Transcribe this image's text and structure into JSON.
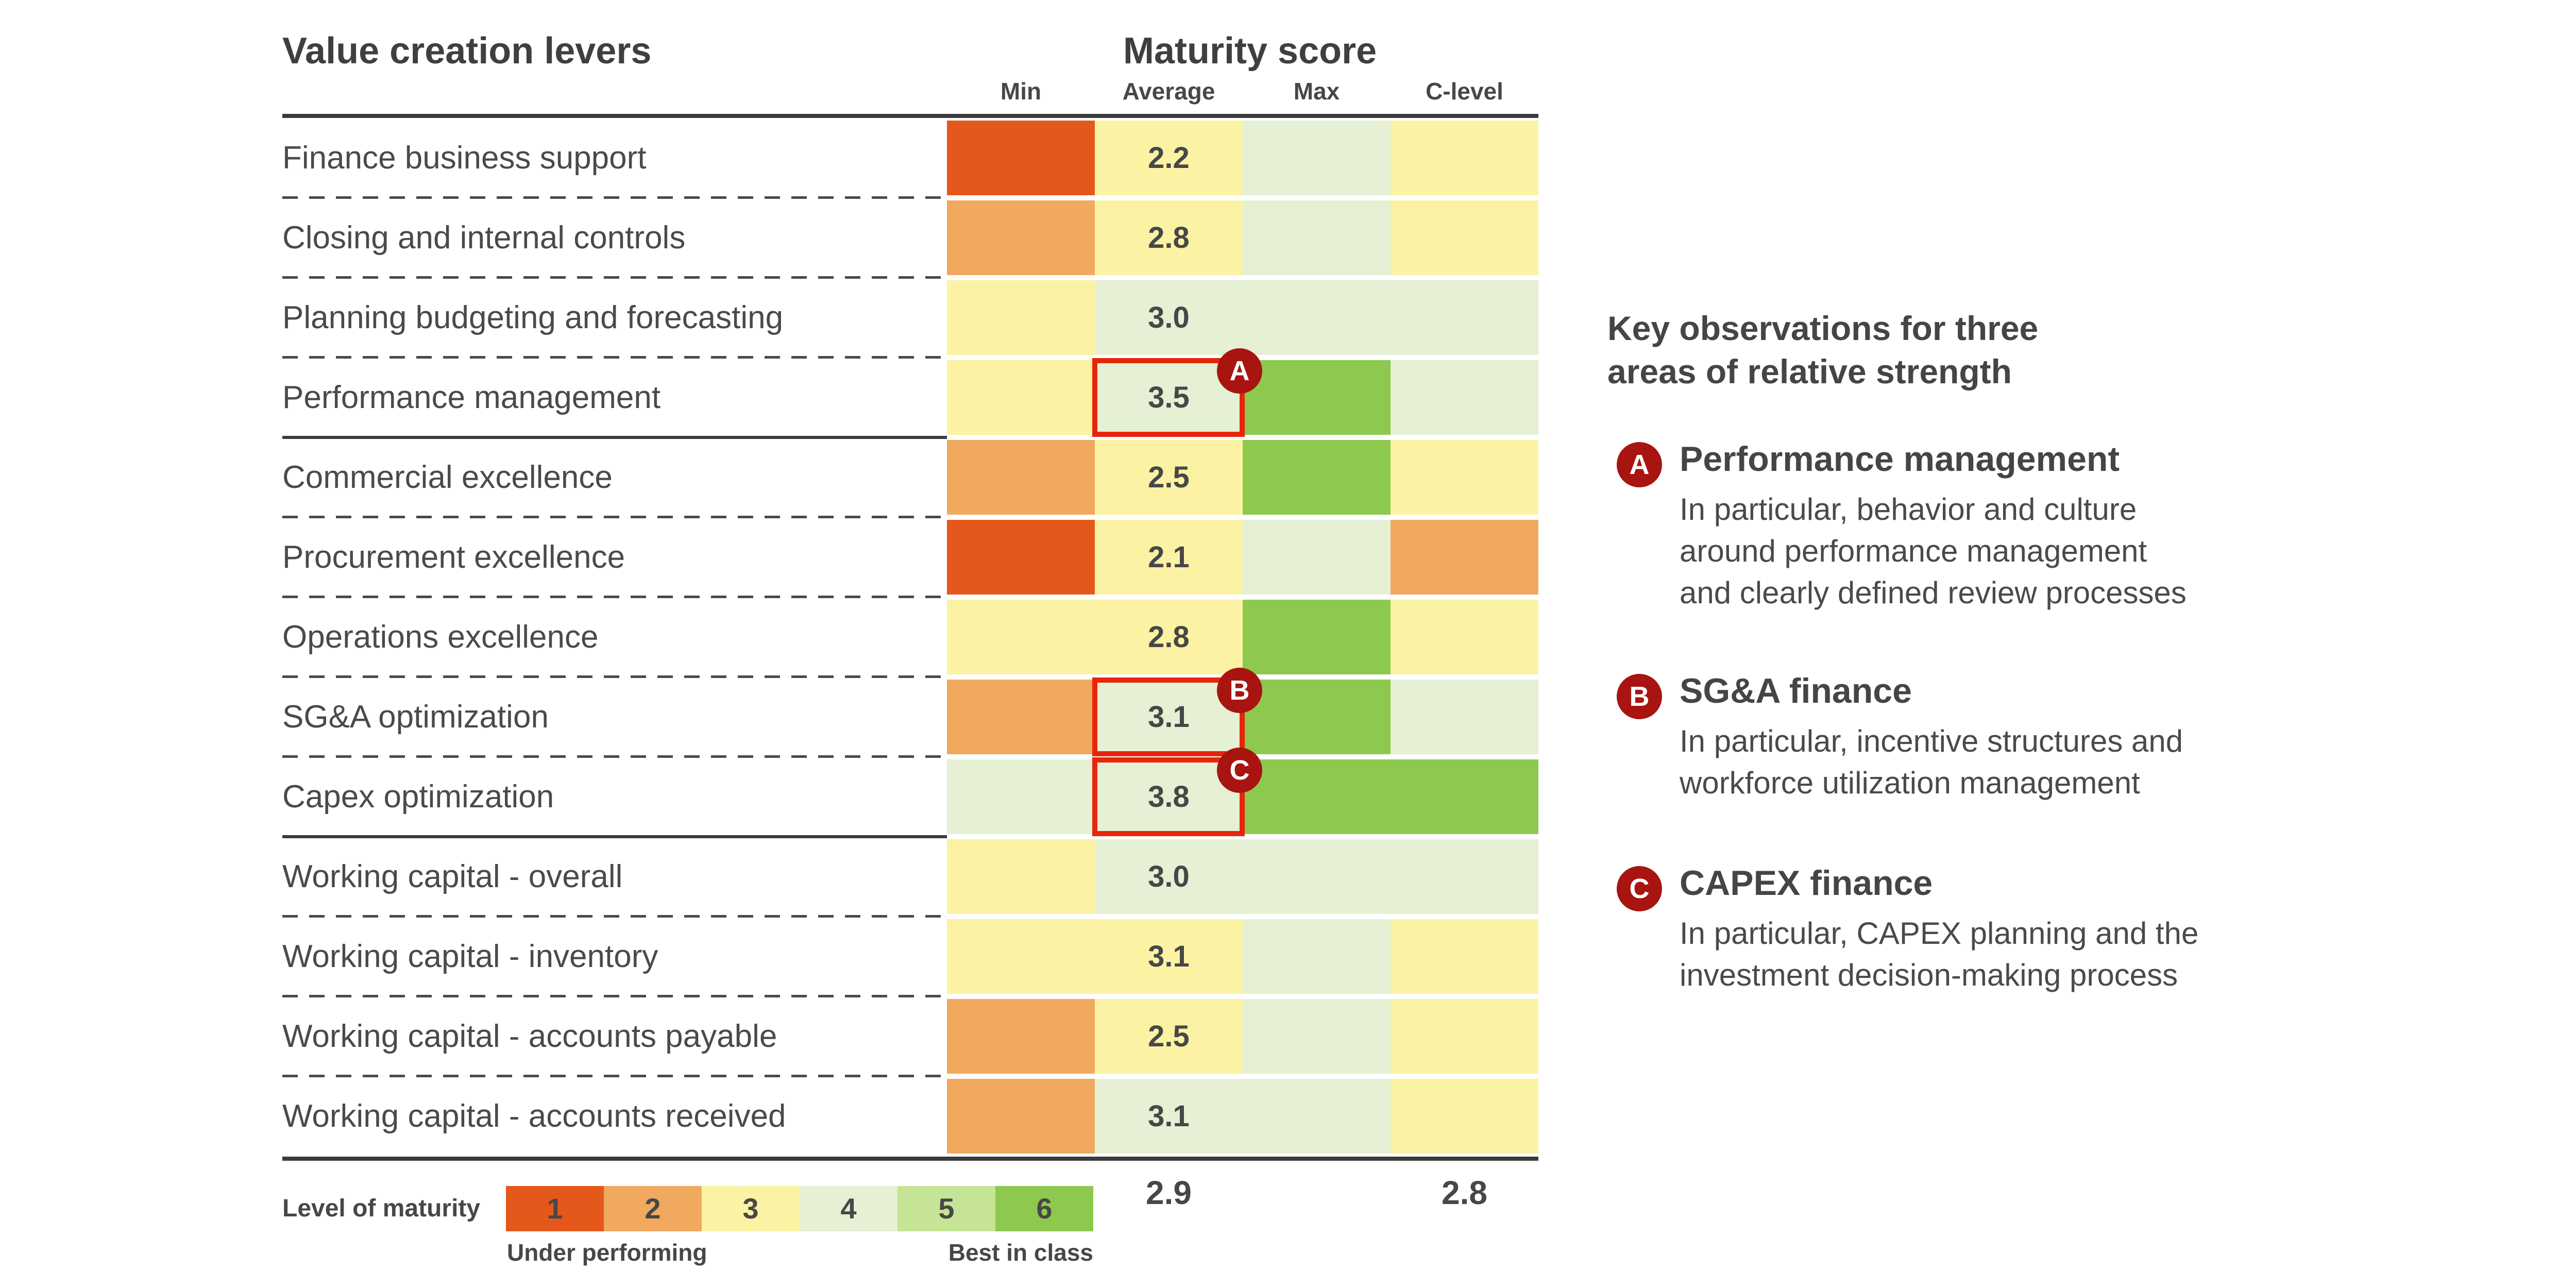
{
  "chart_data": {
    "type": "heatmap",
    "rows_header": "Value creation levers",
    "title": "Maturity score",
    "columns": [
      "Min",
      "Average",
      "Max",
      "C-level"
    ],
    "rows": [
      {
        "label": "Finance business support",
        "average_score": "2.2",
        "cell_levels": {
          "min": 1,
          "average": 3,
          "max": 4,
          "c_level": 3
        },
        "annotation": null,
        "separator_after": "dashed"
      },
      {
        "label": "Closing and internal controls",
        "average_score": "2.8",
        "cell_levels": {
          "min": 2,
          "average": 3,
          "max": 4,
          "c_level": 3
        },
        "annotation": null,
        "separator_after": "dashed"
      },
      {
        "label": "Planning budgeting and forecasting",
        "average_score": "3.0",
        "cell_levels": {
          "min": 3,
          "average": 4,
          "max": 4,
          "c_level": 4
        },
        "annotation": null,
        "separator_after": "dashed"
      },
      {
        "label": "Performance management",
        "average_score": "3.5",
        "cell_levels": {
          "min": 3,
          "average": 4,
          "max": 6,
          "c_level": 4
        },
        "annotation": "A",
        "separator_after": "solid"
      },
      {
        "label": "Commercial excellence",
        "average_score": "2.5",
        "cell_levels": {
          "min": 2,
          "average": 3,
          "max": 6,
          "c_level": 3
        },
        "annotation": null,
        "separator_after": "dashed"
      },
      {
        "label": "Procurement excellence",
        "average_score": "2.1",
        "cell_levels": {
          "min": 1,
          "average": 3,
          "max": 4,
          "c_level": 2
        },
        "annotation": null,
        "separator_after": "dashed"
      },
      {
        "label": "Operations excellence",
        "average_score": "2.8",
        "cell_levels": {
          "min": 3,
          "average": 3,
          "max": 6,
          "c_level": 3
        },
        "annotation": null,
        "separator_after": "dashed"
      },
      {
        "label": "SG&A optimization",
        "average_score": "3.1",
        "cell_levels": {
          "min": 2,
          "average": 4,
          "max": 6,
          "c_level": 4
        },
        "annotation": "B",
        "separator_after": "dashed"
      },
      {
        "label": "Capex optimization",
        "average_score": "3.8",
        "cell_levels": {
          "min": 4,
          "average": 4,
          "max": 6,
          "c_level": 6
        },
        "annotation": "C",
        "separator_after": "solid"
      },
      {
        "label": "Working capital - overall",
        "average_score": "3.0",
        "cell_levels": {
          "min": 3,
          "average": 4,
          "max": 4,
          "c_level": 4
        },
        "annotation": null,
        "separator_after": "dashed"
      },
      {
        "label": "Working capital - inventory",
        "average_score": "3.1",
        "cell_levels": {
          "min": 3,
          "average": 3,
          "max": 4,
          "c_level": 3
        },
        "annotation": null,
        "separator_after": "dashed"
      },
      {
        "label": "Working capital - accounts payable",
        "average_score": "2.5",
        "cell_levels": {
          "min": 2,
          "average": 3,
          "max": 4,
          "c_level": 3
        },
        "annotation": null,
        "separator_after": "dashed"
      },
      {
        "label": "Working capital - accounts received",
        "average_score": "3.1",
        "cell_levels": {
          "min": 2,
          "average": 4,
          "max": 4,
          "c_level": 3
        },
        "annotation": null,
        "separator_after": "none"
      }
    ],
    "column_footer_averages": {
      "average": "2.9",
      "c_level": "2.8"
    },
    "scale": {
      "min": 1,
      "max": 6,
      "low_label": "Under performing",
      "high_label": "Best in class"
    }
  },
  "legend": {
    "label": "Level of maturity",
    "items": [
      "1",
      "2",
      "3",
      "4",
      "5",
      "6"
    ],
    "low_caption": "Under performing",
    "high_caption": "Best in class"
  },
  "observations": {
    "title": "Key observations for three\nareas of relative strength",
    "items": [
      {
        "badge": "A",
        "heading": "Performance management",
        "body": "In particular, behavior and culture\naround performance management\nand clearly defined review processes"
      },
      {
        "badge": "B",
        "heading": "SG&A finance",
        "body": "In particular, incentive structures and\nworkforce utilization management"
      },
      {
        "badge": "C",
        "heading": "CAPEX finance",
        "body": "In particular, CAPEX planning and the\ninvestment decision-making process"
      }
    ]
  },
  "colors": {
    "levels": {
      "1": "#e4581c",
      "2": "#f0a95e",
      "3": "#fbf3a3",
      "4": "#e5f0d4",
      "5": "#c6e495",
      "6": "#8dc94f"
    },
    "annotation_box": "#e8250b",
    "annotation_badge": "#a81410",
    "text": "#4a4a4a",
    "line": "#3b3b3b"
  }
}
